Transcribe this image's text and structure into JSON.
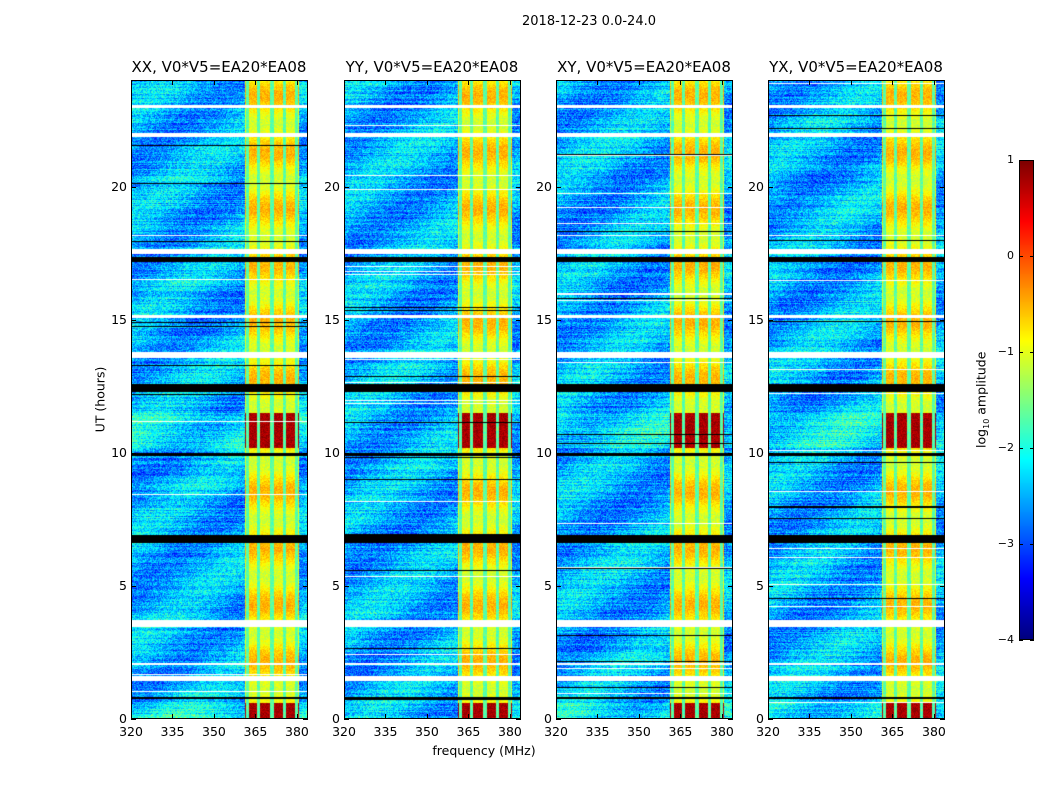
{
  "chart_data": {
    "type": "heatmap",
    "suptitle": "2018-12-23 0.0-24.0",
    "xlabel": "frequency (MHz)",
    "ylabel": "UT (hours)",
    "xlim": [
      320,
      384
    ],
    "ylim": [
      0,
      24
    ],
    "xticks": [
      "320",
      "335",
      "350",
      "365",
      "380"
    ],
    "yticks": [
      "0",
      "5",
      "10",
      "15",
      "20"
    ],
    "colorbar": {
      "label_prefix": "log",
      "label_sub": "10",
      "label_suffix": " amplitude",
      "range": [
        -4,
        1
      ],
      "ticks": [
        "1",
        "0",
        "−1",
        "−2",
        "−3",
        "−4"
      ],
      "colormap": "jet"
    },
    "panels": [
      {
        "title": "XX, V0*V5=EA20*EA08"
      },
      {
        "title": "YY, V0*V5=EA20*EA08"
      },
      {
        "title": "XY, V0*V5=EA20*EA08"
      },
      {
        "title": "YX, V0*V5=EA20*EA08"
      }
    ],
    "background_level": -2.5,
    "rfi_band_mhz": [
      361,
      381
    ],
    "rfi_level": -0.8,
    "rfi_gap_channels_mhz": [
      362,
      366,
      371,
      375.5,
      380
    ],
    "hot_intervals_hours": [
      [
        0,
        0.6
      ],
      [
        10.2,
        11.5
      ]
    ],
    "hot_level": 0.8,
    "flagged_white_hours": [
      [
        1.4,
        1.6
      ],
      [
        2.0,
        2.1
      ],
      [
        3.45,
        3.7
      ],
      [
        13.6,
        13.8
      ],
      [
        15.1,
        15.2
      ],
      [
        17.5,
        17.7
      ],
      [
        21.9,
        22.05
      ],
      [
        23.0,
        23.1
      ]
    ],
    "flagged_black_hours": [
      [
        6.6,
        6.9
      ],
      [
        12.3,
        12.6
      ],
      [
        17.2,
        17.4
      ],
      [
        0.75,
        0.8
      ],
      [
        9.9,
        10.0
      ]
    ]
  }
}
